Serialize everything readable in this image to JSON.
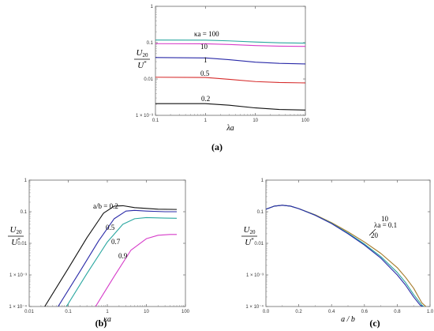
{
  "panels_order": [
    "a",
    "b",
    "c"
  ],
  "chart_data": [
    {
      "type": "line",
      "panel_label": "(a)",
      "xlabel": "λa",
      "ylabel_num": "U20",
      "ylabel_den": "U*",
      "xscale": "log",
      "yscale": "log",
      "xlim": [
        0.1,
        100
      ],
      "ylim": [
        0.001,
        1
      ],
      "xticks": [
        0.1,
        1,
        10,
        100
      ],
      "xtick_labels": [
        "0.1",
        "1",
        "10",
        "100"
      ],
      "yticks": [
        0.001,
        0.01,
        0.1,
        1
      ],
      "ytick_labels": [
        "1 × 10⁻³",
        "0.01",
        "0.1",
        "1"
      ],
      "series": [
        {
          "name": "κa = 100",
          "color": "#2aa7a0",
          "x": [
            0.1,
            1,
            3,
            10,
            30,
            100
          ],
          "y": [
            0.118,
            0.117,
            0.112,
            0.104,
            0.099,
            0.097
          ]
        },
        {
          "name": "10",
          "color": "#d63cc9",
          "x": [
            0.1,
            1,
            3,
            10,
            30,
            100
          ],
          "y": [
            0.094,
            0.093,
            0.089,
            0.083,
            0.08,
            0.079
          ]
        },
        {
          "name": "1",
          "color": "#2a2aa8",
          "x": [
            0.1,
            1,
            3,
            10,
            30,
            100
          ],
          "y": [
            0.039,
            0.038,
            0.034,
            0.029,
            0.027,
            0.026
          ]
        },
        {
          "name": "0.5",
          "color": "#d62c2c",
          "x": [
            0.1,
            1,
            3,
            10,
            30,
            100
          ],
          "y": [
            0.0112,
            0.011,
            0.0098,
            0.0085,
            0.008,
            0.0078
          ]
        },
        {
          "name": "0.2",
          "color": "#111111",
          "x": [
            0.1,
            1,
            3,
            10,
            30,
            100
          ],
          "y": [
            0.0021,
            0.0021,
            0.0019,
            0.0016,
            0.00145,
            0.0014
          ]
        }
      ]
    },
    {
      "type": "line",
      "panel_label": "(b)",
      "xlabel": "κa",
      "ylabel_num": "U20",
      "ylabel_den": "U*",
      "xscale": "log",
      "yscale": "log",
      "xlim": [
        0.01,
        100
      ],
      "ylim": [
        0.0001,
        1
      ],
      "xticks": [
        0.01,
        0.1,
        1,
        10,
        100
      ],
      "xtick_labels": [
        "0.01",
        "0.1",
        "1",
        "10",
        "100"
      ],
      "yticks": [
        0.0001,
        0.001,
        0.01,
        0.1,
        1
      ],
      "ytick_labels": [
        "1 × 10⁻⁴",
        "1 × 10⁻³",
        "0.01",
        "0.1",
        "1"
      ],
      "series": [
        {
          "name": "a/b = 0.2",
          "color": "#111111",
          "x": [
            0.025,
            0.1,
            0.3,
            0.8,
            1.5,
            2.5,
            5,
            20,
            60
          ],
          "y": [
            0.0001,
            0.0016,
            0.015,
            0.09,
            0.15,
            0.155,
            0.135,
            0.12,
            0.118
          ]
        },
        {
          "name": "0.5",
          "color": "#2a2aa8",
          "x": [
            0.055,
            0.2,
            0.6,
            1.5,
            3,
            5,
            10,
            30,
            60
          ],
          "y": [
            0.0001,
            0.0013,
            0.012,
            0.06,
            0.105,
            0.11,
            0.105,
            0.1,
            0.1
          ]
        },
        {
          "name": "0.7",
          "color": "#2aa7a0",
          "x": [
            0.09,
            0.3,
            1,
            2.5,
            5,
            10,
            30,
            60
          ],
          "y": [
            0.0001,
            0.0011,
            0.011,
            0.04,
            0.06,
            0.065,
            0.063,
            0.062
          ]
        },
        {
          "name": "0.9",
          "color": "#d63cc9",
          "x": [
            0.5,
            1.5,
            4,
            10,
            20,
            40,
            60
          ],
          "y": [
            0.0001,
            0.0009,
            0.006,
            0.014,
            0.018,
            0.019,
            0.019
          ]
        }
      ]
    },
    {
      "type": "line",
      "panel_label": "(c)",
      "xlabel": "a / b",
      "ylabel_num": "U20",
      "ylabel_den": "U*",
      "xscale": "linear",
      "yscale": "log",
      "xlim": [
        0,
        1
      ],
      "ylim": [
        0.0001,
        1
      ],
      "xticks": [
        0,
        0.2,
        0.4,
        0.6,
        0.8,
        1
      ],
      "xtick_labels": [
        "0.0",
        "0.2",
        "0.4",
        "0.6",
        "0.8",
        "1.0"
      ],
      "yticks": [
        0.0001,
        0.001,
        0.01,
        0.1,
        1
      ],
      "ytick_labels": [
        "1 × 10⁻⁴",
        "1 × 10⁻³",
        "0.01",
        "0.1",
        "1"
      ],
      "series": [
        {
          "name": "λa = 0.1",
          "color": "#a57a2a",
          "x": [
            0.0,
            0.05,
            0.1,
            0.15,
            0.2,
            0.3,
            0.4,
            0.5,
            0.6,
            0.7,
            0.8,
            0.85,
            0.9,
            0.95,
            0.975
          ],
          "y": [
            0.12,
            0.15,
            0.16,
            0.15,
            0.125,
            0.08,
            0.045,
            0.023,
            0.011,
            0.0048,
            0.0017,
            0.00085,
            0.00038,
            0.00013,
            0.0001
          ]
        },
        {
          "name": "10",
          "color": "#2aa7a0",
          "x": [
            0.0,
            0.05,
            0.1,
            0.15,
            0.2,
            0.3,
            0.4,
            0.5,
            0.6,
            0.7,
            0.8,
            0.85,
            0.9,
            0.95,
            0.962
          ],
          "y": [
            0.12,
            0.15,
            0.16,
            0.15,
            0.125,
            0.078,
            0.043,
            0.021,
            0.0095,
            0.0038,
            0.0012,
            0.00058,
            0.00024,
            0.00011,
            0.0001
          ]
        },
        {
          "name": "20",
          "color": "#2a2aa8",
          "x": [
            0.0,
            0.05,
            0.1,
            0.15,
            0.2,
            0.3,
            0.4,
            0.5,
            0.6,
            0.7,
            0.8,
            0.85,
            0.9,
            0.94,
            0.955
          ],
          "y": [
            0.12,
            0.15,
            0.16,
            0.15,
            0.125,
            0.077,
            0.042,
            0.02,
            0.0088,
            0.0034,
            0.001,
            0.00048,
            0.0002,
            0.00011,
            0.0001
          ]
        }
      ]
    }
  ]
}
